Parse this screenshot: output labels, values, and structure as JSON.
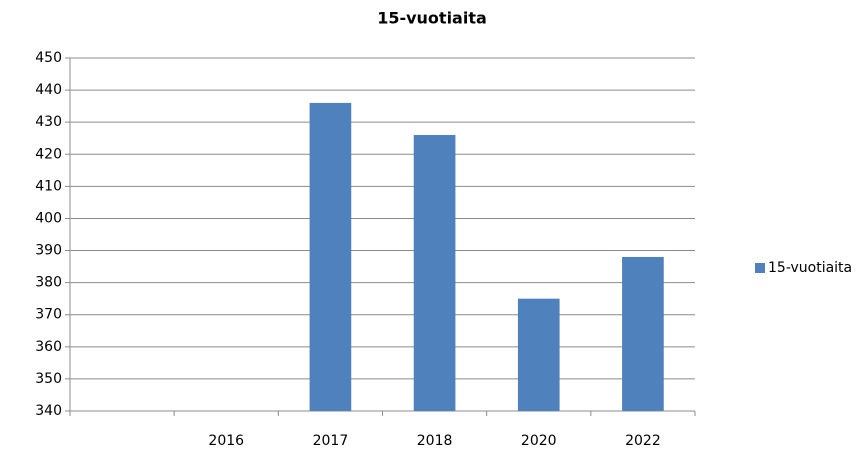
{
  "chart_data": {
    "type": "bar",
    "title": "15-vuotiaita",
    "categories": [
      null,
      "2016",
      "2017",
      "2018",
      "2020",
      "2022"
    ],
    "series": [
      {
        "name": "15-vuotiaita",
        "color": "#4f81bd",
        "values": [
          null,
          null,
          436,
          426,
          375,
          388
        ]
      }
    ],
    "ylim": [
      340,
      450
    ],
    "yticks": [
      340,
      350,
      360,
      370,
      380,
      390,
      400,
      410,
      420,
      430,
      440,
      450
    ],
    "grid": true,
    "legend": "right"
  }
}
